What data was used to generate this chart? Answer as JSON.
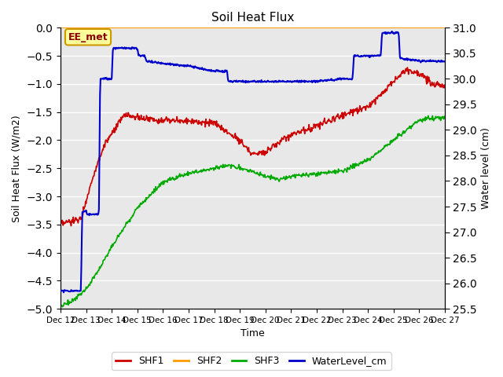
{
  "title": "Soil Heat Flux",
  "xlabel": "Time",
  "ylabel_left": "Soil Heat Flux (W/m2)",
  "ylabel_right": "Water level (cm)",
  "ylim_left": [
    -5.0,
    0.0
  ],
  "ylim_right": [
    25.5,
    31.0
  ],
  "yticks_left": [
    0.0,
    -0.5,
    -1.0,
    -1.5,
    -2.0,
    -2.5,
    -3.0,
    -3.5,
    -4.0,
    -4.5,
    -5.0
  ],
  "yticks_right": [
    31.0,
    30.5,
    30.0,
    29.5,
    29.0,
    28.5,
    28.0,
    27.5,
    27.0,
    26.5,
    26.0,
    25.5
  ],
  "xtick_labels": [
    "Dec 12",
    "Dec 13",
    "Dec 14",
    "Dec 15",
    "Dec 16",
    "Dec 17",
    "Dec 18",
    "Dec 19",
    "Dec 20",
    "Dec 21",
    "Dec 22",
    "Dec 23",
    "Dec 24",
    "Dec 25",
    "Dec 26",
    "Dec 27"
  ],
  "n_days": 15,
  "bg_color": "#e8e8e8",
  "grid_color": "#ffffff",
  "colors": {
    "SHF1": "#cc0000",
    "SHF2": "#ff9900",
    "SHF3": "#00aa00",
    "WaterLevel_cm": "#0000cc"
  },
  "annotation_text": "EE_met",
  "annotation_box_color": "#ffff99",
  "annotation_box_edge": "#cc9900",
  "figsize": [
    6.4,
    4.8
  ],
  "dpi": 100
}
